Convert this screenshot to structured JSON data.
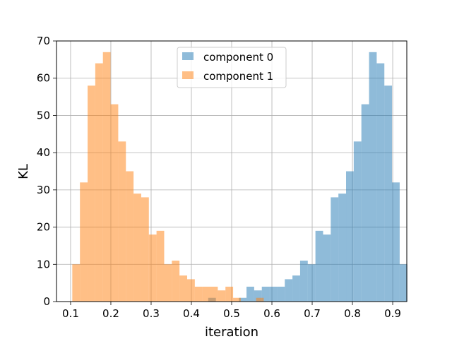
{
  "chart_data": {
    "type": "bar",
    "title": "",
    "xlabel": "iteration",
    "ylabel": "KL",
    "xlim": [
      0.065,
      0.935
    ],
    "ylim": [
      0,
      70
    ],
    "xticks": [
      "0.1",
      "0.2",
      "0.3",
      "0.4",
      "0.5",
      "0.6",
      "0.7",
      "0.8",
      "0.9"
    ],
    "yticks": [
      "0",
      "10",
      "20",
      "30",
      "40",
      "50",
      "60",
      "70"
    ],
    "grid": true,
    "legend_position": "top-center",
    "series": [
      {
        "name": "component 0",
        "color": "#1f77b4",
        "opacity": 0.5,
        "bin_start": 0.4418,
        "bin_width": 0.01902,
        "counts": [
          1,
          0,
          0,
          0,
          1,
          4,
          3,
          4,
          4,
          4,
          6,
          7,
          11,
          10,
          19,
          18,
          28,
          29,
          35,
          43,
          53,
          67,
          64,
          58,
          32,
          10
        ]
      },
      {
        "name": "component 1",
        "color": "#ff7f0e",
        "opacity": 0.5,
        "bin_start": 0.1042,
        "bin_width": 0.01902,
        "counts": [
          10,
          32,
          58,
          64,
          67,
          53,
          43,
          35,
          29,
          28,
          18,
          19,
          10,
          11,
          7,
          6,
          4,
          4,
          4,
          3,
          4,
          1,
          0,
          0,
          1,
          0
        ]
      }
    ]
  }
}
